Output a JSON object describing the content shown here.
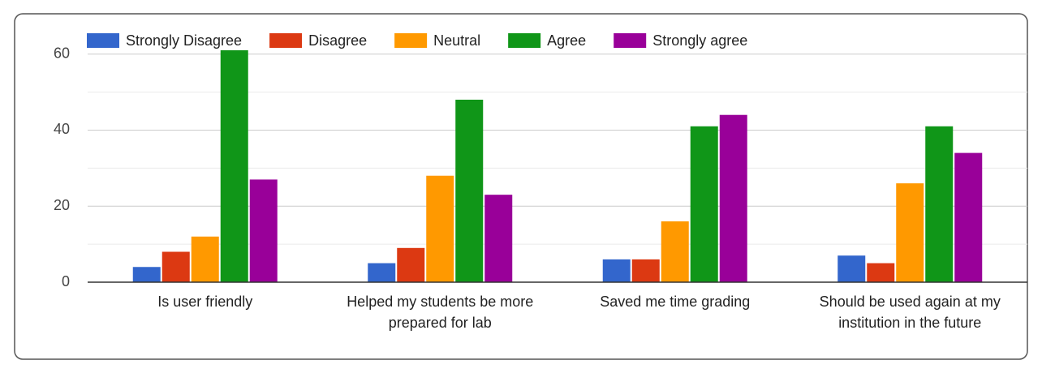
{
  "chart_data": {
    "type": "bar",
    "categories": [
      [
        "Is user friendly"
      ],
      [
        "Helped my students be more",
        "prepared for lab"
      ],
      [
        "Saved me time grading"
      ],
      [
        "Should be used again at my",
        "institution in the future"
      ]
    ],
    "series": [
      {
        "name": "Strongly Disagree",
        "color": "#3366cc",
        "values": [
          4,
          5,
          6,
          7
        ]
      },
      {
        "name": "Disagree",
        "color": "#dc3912",
        "values": [
          8,
          9,
          6,
          5
        ]
      },
      {
        "name": "Neutral",
        "color": "#ff9900",
        "values": [
          12,
          28,
          16,
          26
        ]
      },
      {
        "name": "Agree",
        "color": "#109618",
        "values": [
          61,
          48,
          41,
          41
        ]
      },
      {
        "name": "Strongly agree",
        "color": "#990099",
        "values": [
          27,
          23,
          44,
          34
        ]
      }
    ],
    "ylim": [
      0,
      61
    ],
    "yticks": [
      0,
      20,
      40,
      60
    ],
    "minor_gridlines": [
      10,
      30,
      50
    ],
    "grid": true,
    "legend": "top"
  }
}
